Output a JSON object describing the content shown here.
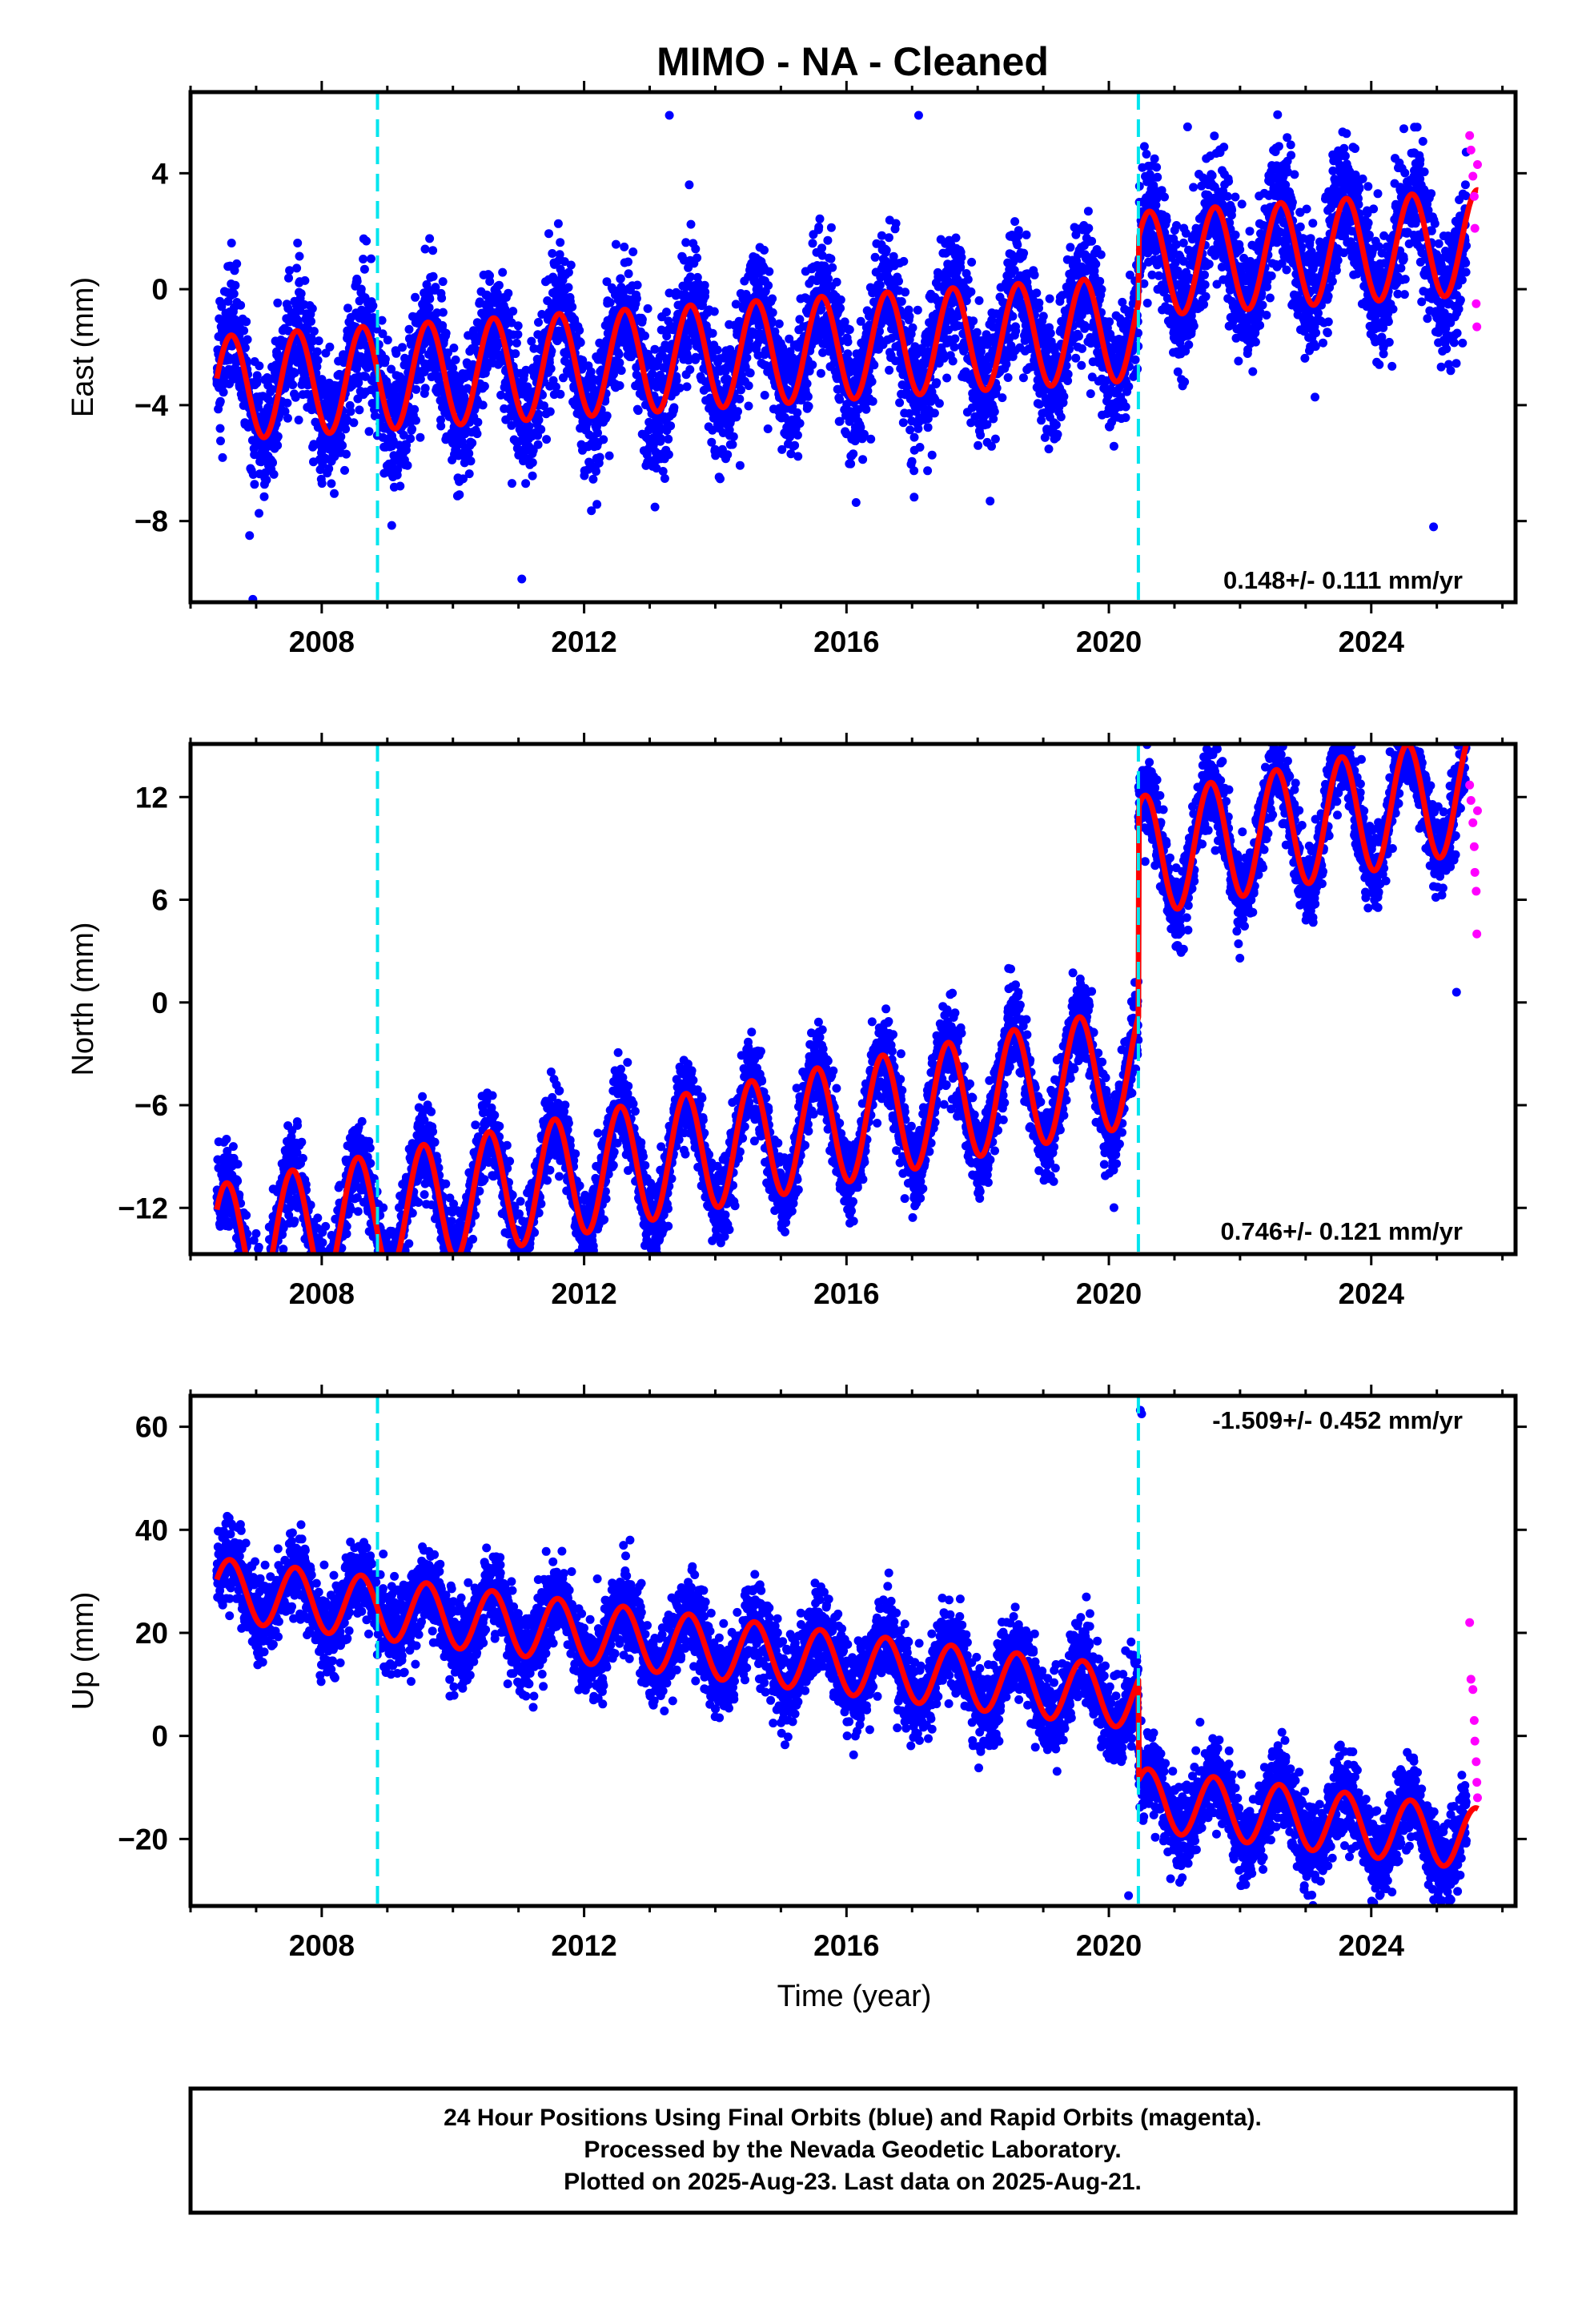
{
  "title": "MIMO  - NA - Cleaned",
  "xlabel": "Time (year)",
  "footer": {
    "line1": "24 Hour Positions Using Final Orbits (blue) and Rapid Orbits (magenta).",
    "line2": "Processed by the Nevada Geodetic Laboratory.",
    "line3": "Plotted on 2025-Aug-23. Last data on 2025-Aug-21."
  },
  "colors": {
    "final_orbits": "#0000ff",
    "rapid_orbits": "#ff00ff",
    "model_fit": "#ff0000",
    "offsets": "#00e5ee"
  },
  "chart_data": [
    {
      "type": "scatter",
      "panel": "east",
      "ylabel": "East (mm)",
      "rate_label": "0.148+/- 0.111 mm/yr",
      "xlim": [
        2006.0,
        2026.2
      ],
      "ylim": [
        -10.8,
        6.8
      ],
      "xticks": [
        2008,
        2012,
        2016,
        2020,
        2024
      ],
      "yticks": [
        -8,
        -4,
        0,
        4
      ],
      "ytick_labels": [
        "−8",
        "−4",
        "0",
        "4"
      ],
      "offset_lines": [
        2008.85,
        2020.45
      ],
      "data_start": 2006.4,
      "rapid_start": 2025.45,
      "data_end": 2025.63,
      "model": {
        "trend_mm_per_yr": 0.148,
        "pre_offset_value": -2.0,
        "post_offset_value": 0.2,
        "annual_amplitude": 1.8,
        "annual_phase_year": 0.62,
        "scatter_sigma": 1.1
      },
      "outliers": [
        [
          2006.95,
          -10.7
        ],
        [
          2006.9,
          -8.5
        ],
        [
          2011.05,
          -10.0
        ],
        [
          2010.9,
          -6.7
        ],
        [
          2017.1,
          6.0
        ],
        [
          2013.3,
          6.0
        ],
        [
          2024.95,
          -8.2
        ],
        [
          2021.2,
          5.6
        ]
      ],
      "rapid_points": [
        [
          2025.5,
          5.3
        ],
        [
          2025.52,
          4.8
        ],
        [
          2025.55,
          3.9
        ],
        [
          2025.57,
          3.2
        ],
        [
          2025.58,
          2.1
        ],
        [
          2025.6,
          -0.5
        ],
        [
          2025.61,
          -1.3
        ],
        [
          2025.62,
          4.3
        ]
      ]
    },
    {
      "type": "scatter",
      "panel": "north",
      "ylabel": "North (mm)",
      "rate_label": "0.746+/- 0.121 mm/yr",
      "xlim": [
        2006.0,
        2026.2
      ],
      "ylim": [
        -14.7,
        15.1
      ],
      "xticks": [
        2008,
        2012,
        2016,
        2020,
        2024
      ],
      "yticks": [
        -12,
        -6,
        0,
        6,
        12
      ],
      "ytick_labels": [
        "−12",
        "−6",
        "0",
        "6",
        "12"
      ],
      "offset_lines": [
        2008.85,
        2020.45
      ],
      "data_start": 2006.4,
      "rapid_start": 2025.45,
      "data_end": 2025.63,
      "model": {
        "trend_mm_per_yr": 0.746,
        "pre_offset_value": -7.0,
        "post_offset_value": 5.2,
        "annual_amplitude": 3.5,
        "annual_phase_year": 0.55,
        "scatter_sigma": 1.2
      },
      "outliers": [
        [
          2023.85,
          14.2
        ],
        [
          2020.55,
          13.5
        ],
        [
          2006.75,
          -14.2
        ],
        [
          2007.0,
          -13.5
        ],
        [
          2025.3,
          0.6
        ]
      ],
      "rapid_points": [
        [
          2025.5,
          12.7
        ],
        [
          2025.52,
          11.8
        ],
        [
          2025.55,
          10.5
        ],
        [
          2025.57,
          9.1
        ],
        [
          2025.58,
          7.6
        ],
        [
          2025.6,
          6.5
        ],
        [
          2025.61,
          4.0
        ],
        [
          2025.62,
          11.2
        ]
      ]
    },
    {
      "type": "scatter",
      "panel": "up",
      "ylabel": "Up (mm)",
      "rate_label": "-1.509+/- 0.452 mm/yr",
      "xlim": [
        2006.0,
        2026.2
      ],
      "ylim": [
        -33.0,
        66.0
      ],
      "xticks": [
        2008,
        2012,
        2016,
        2020,
        2024
      ],
      "yticks": [
        -20,
        0,
        20,
        40,
        60
      ],
      "ytick_labels": [
        "−20",
        "0",
        "20",
        "40",
        "60"
      ],
      "offset_lines": [
        2008.85,
        2020.45
      ],
      "data_start": 2006.4,
      "rapid_start": 2025.45,
      "data_end": 2025.63,
      "model": {
        "trend_mm_per_yr": -1.509,
        "pre_offset_value": 14.0,
        "post_offset_value": -5.5,
        "annual_amplitude": 6.0,
        "annual_phase_year": 0.6,
        "scatter_sigma": 4.0
      },
      "outliers": [
        [
          2020.5,
          62.5
        ],
        [
          2020.48,
          63.2
        ],
        [
          2012.7,
          38.0
        ],
        [
          2012.6,
          37.0
        ],
        [
          2013.85,
          26.0
        ],
        [
          2007.75,
          36.0
        ],
        [
          2020.3,
          -31.0
        ],
        [
          2006.5,
          31.0
        ]
      ],
      "rapid_points": [
        [
          2025.5,
          22.0
        ],
        [
          2025.52,
          11.0
        ],
        [
          2025.55,
          9.0
        ],
        [
          2025.57,
          3.0
        ],
        [
          2025.58,
          -1.0
        ],
        [
          2025.6,
          -5.0
        ],
        [
          2025.61,
          -9.0
        ],
        [
          2025.62,
          -12.0
        ]
      ]
    }
  ]
}
